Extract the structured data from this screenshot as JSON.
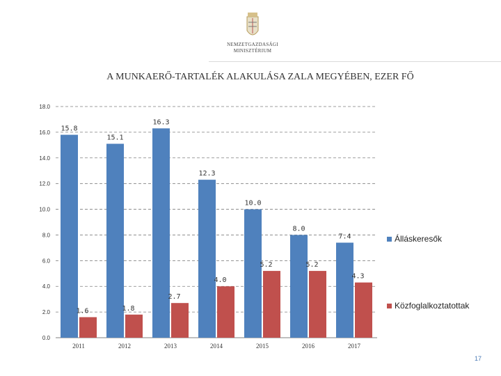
{
  "header": {
    "logo_text_line1": "NEMZETGAZDASÁGI",
    "logo_text_line2": "MINISZTÉRIUM"
  },
  "page_number": "17",
  "chart_data": {
    "type": "bar",
    "title": "A MUNKAERŐ-TARTALÉK ALAKULÁSA ZALA MEGYÉBEN, EZER FŐ",
    "categories": [
      "2011",
      "2012",
      "2013",
      "2014",
      "2015",
      "2016",
      "2017"
    ],
    "series": [
      {
        "name": "Álláskeresők",
        "color": "#4f81bd",
        "values": [
          15.8,
          15.1,
          16.3,
          12.3,
          10.0,
          8.0,
          7.4
        ]
      },
      {
        "name": "Közfoglalkoztatottak",
        "color": "#c0504d",
        "values": [
          1.6,
          1.8,
          2.7,
          4.0,
          5.2,
          5.2,
          4.3
        ]
      }
    ],
    "yticks": [
      "0.0",
      "2.0",
      "4.0",
      "6.0",
      "8.0",
      "10.0",
      "12.0",
      "14.0",
      "16.0",
      "18.0"
    ],
    "ylim": [
      0,
      18
    ],
    "grid": true,
    "legend_position": "right"
  }
}
